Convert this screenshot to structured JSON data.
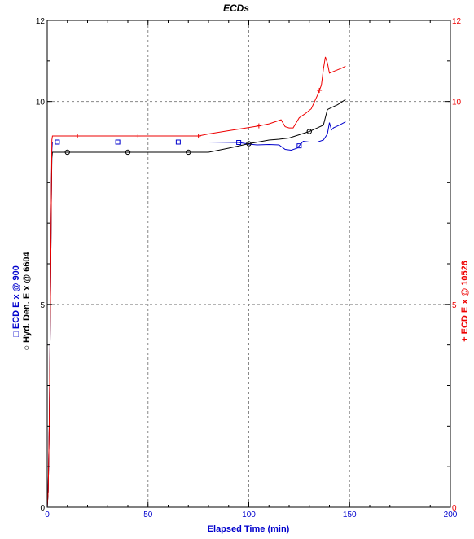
{
  "chart_data": {
    "type": "line",
    "title": "ECDs",
    "xlabel": "Elapsed Time (min)",
    "xlim": [
      0,
      200
    ],
    "ylim": [
      0,
      12
    ],
    "x_ticks": [
      "0",
      "50",
      "100",
      "150",
      "200"
    ],
    "y_ticks_left": [
      "0",
      "5",
      "10",
      "12"
    ],
    "y_ticks_right": [
      "0",
      "5",
      "10",
      "12"
    ],
    "ylabel_left": {
      "line1_marker": "□",
      "line1_text": "ECD E x @ 900",
      "line2_marker": "○",
      "line2_text": "Hyd. Den. E x @ 6604"
    },
    "ylabel_right": {
      "marker": "+",
      "text": "ECD E x @ 10526"
    },
    "grid": true,
    "colors": {
      "ecd_900": "#0000cc",
      "hyd_den": "#000000",
      "ecd_10526": "#ee0000",
      "grid": "#888888",
      "frame": "#000000"
    },
    "series": [
      {
        "name": "ECD E x @ 900",
        "axis": "left",
        "color": "#0000cc",
        "marker": "square",
        "x": [
          0,
          0.5,
          1,
          1.5,
          2,
          2.3,
          2.6,
          30,
          60,
          80,
          95,
          100,
          104,
          110,
          115,
          118,
          121,
          124,
          127,
          130,
          134,
          137,
          139,
          140,
          141,
          142,
          145,
          148
        ],
        "y": [
          0,
          0.4,
          2.0,
          4.5,
          7.5,
          8.8,
          9.0,
          9.0,
          9.0,
          9.0,
          8.99,
          8.95,
          8.93,
          8.94,
          8.93,
          8.82,
          8.8,
          8.85,
          9.02,
          9.0,
          9.0,
          9.05,
          9.2,
          9.48,
          9.3,
          9.35,
          9.42,
          9.5
        ],
        "marker_x": [
          5,
          35,
          65,
          95,
          125
        ]
      },
      {
        "name": "Hyd. Den. E x @ 6604",
        "axis": "left",
        "color": "#000000",
        "marker": "circle",
        "x": [
          0,
          0.5,
          1,
          1.5,
          2,
          2.3,
          2.6,
          30,
          60,
          80,
          90,
          100,
          110,
          115,
          120,
          125,
          130,
          134,
          137,
          139,
          141,
          144,
          148
        ],
        "y": [
          0,
          0.4,
          2.0,
          4.5,
          7.5,
          8.6,
          8.75,
          8.75,
          8.75,
          8.75,
          8.85,
          8.96,
          9.05,
          9.07,
          9.1,
          9.18,
          9.26,
          9.35,
          9.42,
          9.8,
          9.85,
          9.92,
          10.05
        ],
        "marker_x": [
          10,
          40,
          70,
          100,
          130
        ]
      },
      {
        "name": "ECD E x @ 10526",
        "axis": "right",
        "color": "#ee0000",
        "marker": "plus",
        "x": [
          0,
          0.5,
          1,
          1.5,
          2,
          2.3,
          2.6,
          30,
          60,
          75,
          80,
          90,
          100,
          105,
          110,
          113,
          116,
          118,
          120,
          122,
          125,
          128,
          131,
          134,
          136,
          137,
          138,
          139,
          140,
          141,
          142,
          144,
          146,
          148
        ],
        "y": [
          0,
          0.4,
          2.0,
          4.5,
          7.5,
          9.05,
          9.15,
          9.15,
          9.15,
          9.15,
          9.2,
          9.28,
          9.36,
          9.4,
          9.45,
          9.5,
          9.55,
          9.38,
          9.35,
          9.35,
          9.6,
          9.7,
          9.82,
          10.15,
          10.4,
          10.8,
          11.1,
          10.95,
          10.7,
          10.72,
          10.74,
          10.78,
          10.82,
          10.87
        ],
        "marker_x": [
          15,
          45,
          75,
          105,
          135
        ]
      }
    ]
  }
}
